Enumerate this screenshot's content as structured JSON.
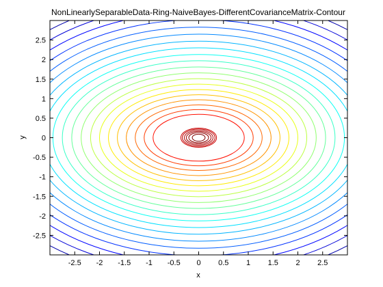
{
  "chart_data": {
    "type": "contour",
    "title": "NonLinearlySeparableData-Ring-NaiveBayes-DifferentCovarianceMatrix-Contour",
    "xlabel": "x",
    "ylabel": "y",
    "xlim": [
      -3,
      3
    ],
    "ylim": [
      -3,
      3
    ],
    "xticks": [
      -2.5,
      -2,
      -1.5,
      -1,
      -0.5,
      0,
      0.5,
      1,
      1.5,
      2,
      2.5
    ],
    "yticks": [
      2.5,
      2,
      1.5,
      1,
      0.5,
      0,
      -0.5,
      -1,
      -1.5,
      -2,
      -2.5
    ],
    "xtick_labels": [
      "-2.5",
      "-2",
      "-1.5",
      "-1",
      "-0.5",
      "0",
      "0.5",
      "1",
      "1.5",
      "2",
      "2.5"
    ],
    "ytick_labels": [
      "2.5",
      "2",
      "1.5",
      "1",
      "0.5",
      "0",
      "-0.5",
      "-1",
      "-1.5",
      "-2",
      "-2.5"
    ],
    "center": [
      0,
      0
    ],
    "inner_cluster_semi_axes": [
      [
        0.13,
        0.09
      ],
      [
        0.2,
        0.13
      ],
      [
        0.25,
        0.16
      ],
      [
        0.29,
        0.19
      ],
      [
        0.33,
        0.22
      ],
      [
        0.36,
        0.245
      ]
    ],
    "outer_ring_semi_axes": [
      [
        0.92,
        0.6
      ],
      [
        1.1,
        0.72
      ],
      [
        1.28,
        0.84
      ],
      [
        1.46,
        0.97
      ],
      [
        1.64,
        1.1
      ],
      [
        1.82,
        1.23
      ],
      [
        2.0,
        1.37
      ],
      [
        2.18,
        1.51
      ],
      [
        2.37,
        1.66
      ],
      [
        2.56,
        1.81
      ],
      [
        2.75,
        1.97
      ],
      [
        2.94,
        2.13
      ],
      [
        3.14,
        2.3
      ],
      [
        3.34,
        2.47
      ],
      [
        3.54,
        2.65
      ],
      [
        3.75,
        2.83
      ],
      [
        3.96,
        3.02
      ],
      [
        4.18,
        3.22
      ],
      [
        4.4,
        3.42
      ],
      [
        4.63,
        3.63
      ],
      [
        4.86,
        3.85
      ]
    ],
    "colormap": "jet",
    "grid": false
  }
}
